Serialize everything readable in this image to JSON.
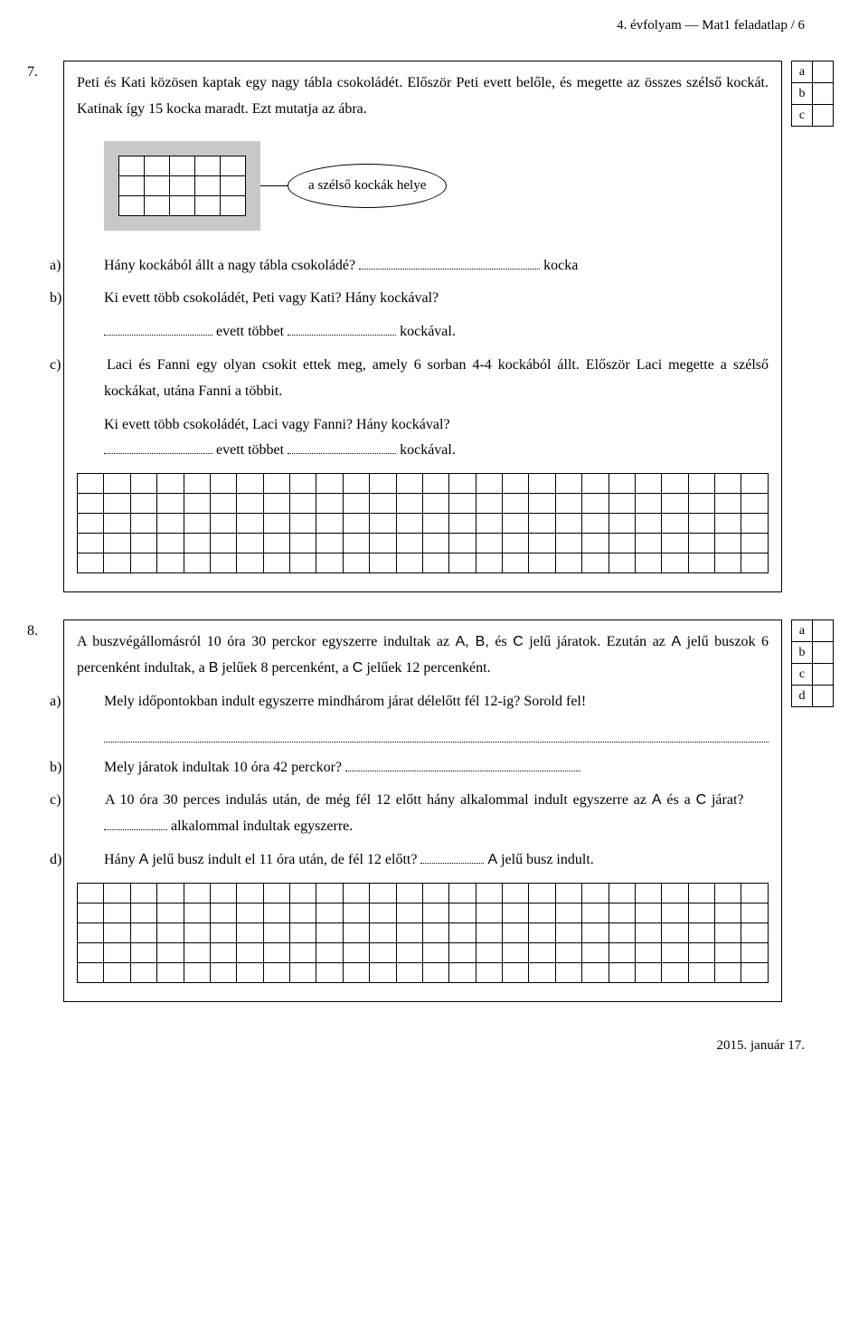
{
  "header": "4. évfolyam — Mat1 feladatlap / 6",
  "footer": "2015. január 17.",
  "task7": {
    "num": "7.",
    "intro": "Peti és Kati közösen kaptak egy nagy tábla csokoládét. Először Peti evett belőle, és megette az összes szélső kockát. Katinak így 15 kocka maradt. Ezt mutatja az ábra.",
    "callout": "a szélső kockák helye",
    "choco": {
      "rows": 3,
      "cols": 5
    },
    "a_lbl": "a)",
    "a_text": "Hány kockából állt a nagy tábla csokoládé?",
    "a_suffix": "kocka",
    "b_lbl": "b)",
    "b_text": "Ki evett több csokoládét, Peti vagy Kati? Hány kockával?",
    "b_ans1": "evett többet",
    "b_ans2": "kockával.",
    "c_lbl": "c)",
    "c_text1": "Laci és Fanni egy olyan csokit ettek meg, amely 6 sorban 4-4 kockából állt. Először Laci megette a szélső kockákat, utána Fanni a többit.",
    "c_text2": "Ki evett több csokoládét, Laci vagy Fanni? Hány kockával?",
    "c_ans1": "evett többet",
    "c_ans2": "kockával.",
    "grid": {
      "rows": 5,
      "cols": 26
    },
    "side": [
      "a",
      "b",
      "c"
    ]
  },
  "task8": {
    "num": "8.",
    "intro1": "A buszvégállomásról 10 óra 30 perckor egyszerre indultak az ",
    "intro_abc1": "A, B,",
    "intro_mid": " és ",
    "intro_abc2": "C",
    "intro2": " jelű járatok. Ezután az ",
    "intro_abc3": "A",
    "intro3": " jelű buszok 6 percenként indultak, a ",
    "intro_abc4": "B",
    "intro4": " jelűek 8 percenként, a ",
    "intro_abc5": "C",
    "intro5": " jelűek 12 percenként.",
    "a_lbl": "a)",
    "a_text": "Mely időpontokban indult egyszerre mindhárom járat délelőtt fél 12-ig? Sorold fel!",
    "b_lbl": "b)",
    "b_text": "Mely járatok indultak 10 óra 42 perckor?",
    "c_lbl": "c)",
    "c_text": "A 10 óra 30 perces indulás után, de még fél 12 előtt hány alkalommal indult egyszerre az ",
    "c_a": "A",
    "c_and": " és a ",
    "c_c": "C",
    "c_text2": " járat?",
    "c_ans": "alkalommal indultak egyszerre.",
    "d_lbl": "d)",
    "d_text": "Hány ",
    "d_a": "A",
    "d_text2": " jelű busz indult el 11 óra után, de fél 12 előtt?",
    "d_a2": "A",
    "d_ans": " jelű busz indult.",
    "grid": {
      "rows": 5,
      "cols": 26
    },
    "side": [
      "a",
      "b",
      "c",
      "d"
    ]
  }
}
